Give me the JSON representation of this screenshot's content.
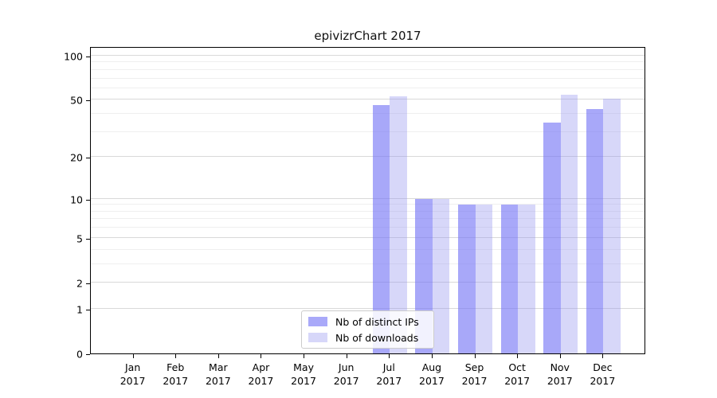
{
  "title": "epivizrChart 2017",
  "chart_data": {
    "type": "bar",
    "title": "epivizrChart 2017",
    "categories": [
      "Jan",
      "Feb",
      "Mar",
      "Apr",
      "May",
      "Jun",
      "Jul",
      "Aug",
      "Sep",
      "Oct",
      "Nov",
      "Dec"
    ],
    "year": "2017",
    "series": [
      {
        "name": "Nb of distinct IPs",
        "color": "#a9a9f9",
        "fill": "rgba(115,115,245,0.62)",
        "values": [
          0,
          0,
          0,
          0,
          0,
          0,
          46,
          10,
          9,
          9,
          35,
          43
        ]
      },
      {
        "name": "Nb of downloads",
        "color": "#d7d7f9",
        "fill": "rgba(150,150,240,0.38)",
        "values": [
          0,
          0,
          0,
          0,
          0,
          0,
          53,
          10,
          9,
          9,
          54,
          51
        ]
      }
    ],
    "y_ticks": [
      0,
      1,
      2,
      5,
      10,
      20,
      50,
      100
    ],
    "minor_gridlines": [
      3,
      4,
      6,
      7,
      8,
      9,
      30,
      40,
      60,
      70,
      80,
      90
    ],
    "scale": "log1p",
    "ylim": [
      0,
      116
    ],
    "grid": true,
    "legend_position": "bottom-center",
    "xlabel": "",
    "ylabel": ""
  }
}
